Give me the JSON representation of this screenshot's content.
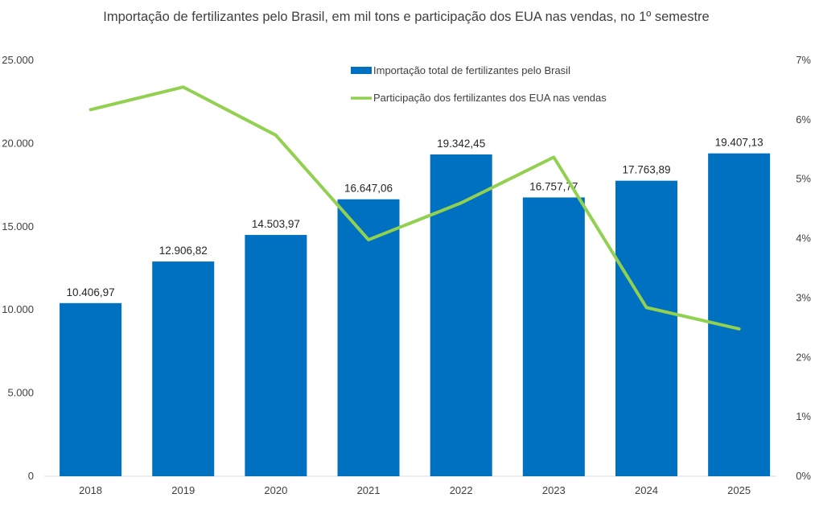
{
  "chart_data": {
    "type": "bar+line",
    "title": "Importação de fertilizantes pelo Brasil, em mil tons e participação dos EUA nas vendas, no 1º semestre",
    "categories": [
      "2018",
      "2019",
      "2020",
      "2021",
      "2022",
      "2023",
      "2024",
      "2025"
    ],
    "series": [
      {
        "name": "Importação total de fertilizantes pelo Brasil",
        "type": "bar",
        "axis": "left",
        "color": "#0070C0",
        "values": [
          10406.97,
          12906.82,
          14503.97,
          16647.06,
          19342.45,
          16757.77,
          17763.89,
          19407.13
        ],
        "labels": [
          "10.406,97",
          "12.906,82",
          "14.503,97",
          "16.647,06",
          "19.342,45",
          "16.757,77",
          "17.763,89",
          "19.407,13"
        ]
      },
      {
        "name": "Participação dos fertilizantes dos EUA nas vendas",
        "type": "line",
        "axis": "right",
        "color": "#92D050",
        "values": [
          6.17,
          6.55,
          5.74,
          3.98,
          4.6,
          5.37,
          2.84,
          2.48
        ]
      }
    ],
    "y_left": {
      "range": [
        0,
        25000
      ],
      "ticks": [
        "0",
        "5.000",
        "10.000",
        "15.000",
        "20.000",
        "25.000"
      ]
    },
    "y_right": {
      "range": [
        0,
        7
      ],
      "ticks": [
        "0%",
        "1%",
        "2%",
        "3%",
        "4%",
        "5%",
        "6%",
        "7%"
      ]
    },
    "grid": false,
    "legend_position": "top-center"
  }
}
